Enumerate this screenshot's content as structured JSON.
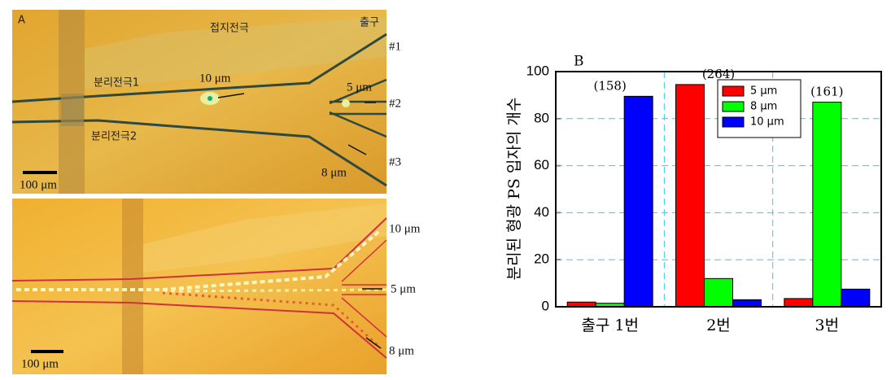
{
  "panel_a": {
    "label": "A",
    "top": {
      "ground_electrode": "접지전극",
      "outlet": "출구",
      "outlet_1": "#1",
      "outlet_2": "#2",
      "outlet_3": "#3",
      "electrode_1": "분리전극1",
      "electrode_2": "분리전극2",
      "size_10": "10 μm",
      "size_5": "5 μm",
      "size_8": "8 μm",
      "scale": "100 μm"
    },
    "bottom": {
      "size_10": "10 μm",
      "size_5": "5 μm",
      "size_8": "8 μm",
      "scale": "100 μm"
    }
  },
  "chart_data": {
    "type": "bar",
    "panel_label": "B",
    "ylabel": "분리된 형광 PS 입자의 개수",
    "categories": [
      "출구 1번",
      "2번",
      "3번"
    ],
    "series": [
      {
        "name": "5 μm",
        "color": "#ff0000",
        "values": [
          2,
          94.5,
          3.5
        ]
      },
      {
        "name": "8 μm",
        "color": "#00ff00",
        "values": [
          1.5,
          12,
          87
        ]
      },
      {
        "name": "10 μm",
        "color": "#0000ff",
        "values": [
          89.5,
          3,
          7.5
        ]
      }
    ],
    "annotations": [
      "(158)",
      "(264)",
      "(161)"
    ],
    "ylim": [
      0,
      100
    ],
    "yticks": [
      0,
      20,
      40,
      60,
      80,
      100
    ],
    "grid": true,
    "legend": "upper right"
  }
}
